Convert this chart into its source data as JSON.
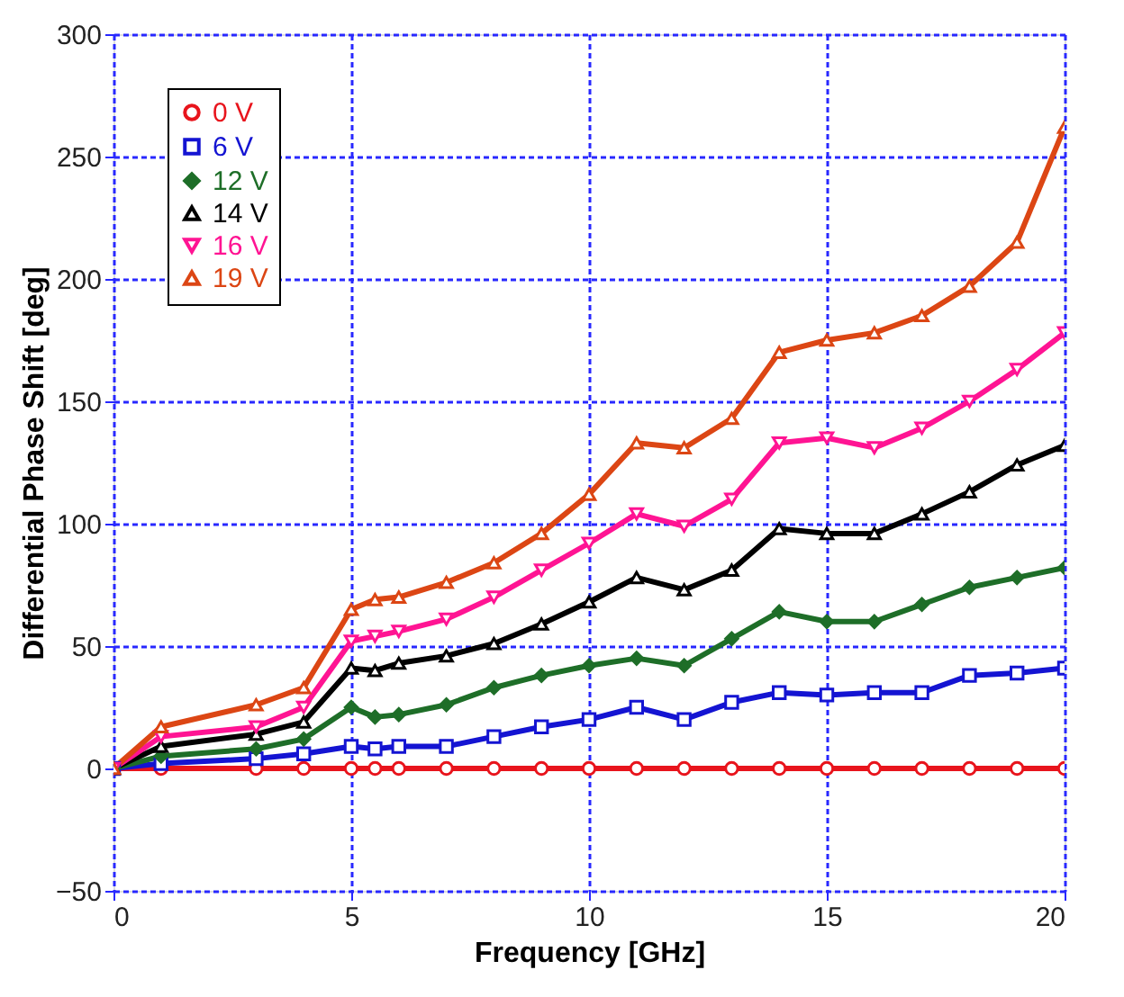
{
  "chart_data": {
    "type": "line",
    "xlabel": "Frequency [GHz]",
    "ylabel": "Differential Phase Shift [deg]",
    "x": [
      0,
      1,
      3,
      4,
      5,
      5.5,
      6,
      7,
      8,
      9,
      10,
      11,
      12,
      13,
      14,
      15,
      16,
      17,
      18,
      19,
      20
    ],
    "xlim": [
      0,
      20
    ],
    "xticks": [
      0,
      5,
      10,
      15,
      20
    ],
    "ylim": [
      -50,
      300
    ],
    "yticks": [
      -50,
      0,
      50,
      100,
      150,
      200,
      250,
      300
    ],
    "grid": true,
    "legend": "top left",
    "line_style": "solid",
    "series": [
      {
        "name": "0 V",
        "color": "#e8141c",
        "marker": "circle",
        "values": [
          0,
          0,
          0,
          0,
          0,
          0,
          0,
          0,
          0,
          0,
          0,
          0,
          0,
          0,
          0,
          0,
          0,
          0,
          0,
          0,
          0
        ]
      },
      {
        "name": "6 V",
        "color": "#1414d2",
        "marker": "square",
        "values": [
          0,
          2,
          4,
          6,
          9,
          8,
          9,
          9,
          13,
          17,
          20,
          25,
          20,
          27,
          31,
          30,
          31,
          31,
          38,
          39,
          41
        ]
      },
      {
        "name": "12 V",
        "color": "#1e6e28",
        "marker": "diamond",
        "values": [
          0,
          5,
          8,
          12,
          25,
          21,
          22,
          26,
          33,
          38,
          42,
          45,
          42,
          53,
          64,
          60,
          60,
          67,
          74,
          78,
          82
        ]
      },
      {
        "name": "14 V",
        "color": "#000000",
        "marker": "triangle",
        "values": [
          0,
          9,
          14,
          19,
          41,
          40,
          43,
          46,
          51,
          59,
          68,
          78,
          73,
          81,
          98,
          96,
          96,
          104,
          113,
          124,
          132
        ]
      },
      {
        "name": "16 V",
        "color": "#ff1493",
        "marker": "triangle-down",
        "values": [
          0,
          13,
          17,
          25,
          52,
          54,
          56,
          61,
          70,
          81,
          92,
          104,
          99,
          110,
          133,
          135,
          131,
          139,
          150,
          163,
          178
        ]
      },
      {
        "name": "19 V",
        "color": "#dc4614",
        "marker": "triangle",
        "values": [
          0,
          17,
          26,
          33,
          65,
          69,
          70,
          76,
          84,
          96,
          112,
          133,
          131,
          143,
          170,
          175,
          178,
          185,
          197,
          215,
          262
        ]
      }
    ]
  }
}
